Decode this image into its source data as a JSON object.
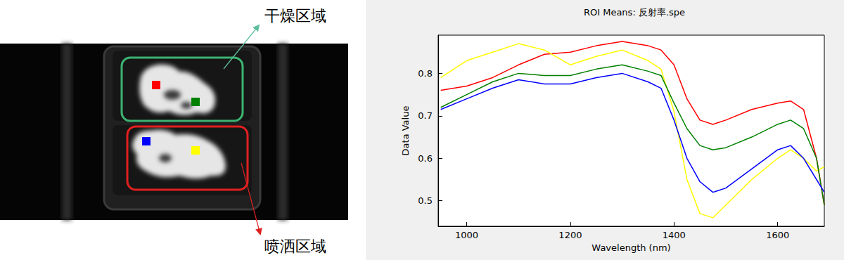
{
  "annotations": {
    "dry_region": "干燥区域",
    "spray_region": "喷洒区域"
  },
  "chart_data": {
    "type": "line",
    "title": "ROI Means: 反射率.spe",
    "x_label": "Wavelength (nm)",
    "y_label": "Data Value",
    "x": [
      950,
      1000,
      1050,
      1100,
      1150,
      1200,
      1250,
      1300,
      1350,
      1375,
      1400,
      1425,
      1450,
      1475,
      1500,
      1550,
      1600,
      1625,
      1650,
      1675,
      1690
    ],
    "series": [
      {
        "color": "#ff0000",
        "values": [
          0.76,
          0.77,
          0.79,
          0.82,
          0.845,
          0.85,
          0.865,
          0.875,
          0.865,
          0.855,
          0.82,
          0.74,
          0.69,
          0.68,
          0.69,
          0.715,
          0.73,
          0.735,
          0.715,
          0.6,
          0.49
        ]
      },
      {
        "color": "#ffff00",
        "values": [
          0.79,
          0.83,
          0.85,
          0.87,
          0.855,
          0.82,
          0.84,
          0.855,
          0.83,
          0.81,
          0.71,
          0.55,
          0.47,
          0.46,
          0.49,
          0.55,
          0.6,
          0.62,
          0.6,
          0.57,
          0.58
        ]
      },
      {
        "color": "#008000",
        "values": [
          0.72,
          0.75,
          0.78,
          0.8,
          0.795,
          0.795,
          0.81,
          0.82,
          0.805,
          0.795,
          0.73,
          0.67,
          0.63,
          0.62,
          0.625,
          0.65,
          0.68,
          0.69,
          0.67,
          0.6,
          0.49
        ]
      },
      {
        "color": "#0000ff",
        "values": [
          0.715,
          0.74,
          0.765,
          0.785,
          0.775,
          0.775,
          0.79,
          0.8,
          0.78,
          0.765,
          0.69,
          0.6,
          0.545,
          0.52,
          0.53,
          0.575,
          0.62,
          0.63,
          0.6,
          0.55,
          0.52
        ]
      }
    ],
    "xlim": [
      945,
      1690
    ],
    "xticks": [
      1000,
      1200,
      1400,
      1600
    ],
    "ylim": [
      0.44,
      0.89
    ],
    "yticks": [
      0.5,
      0.6,
      0.7,
      0.8
    ],
    "grid": false
  }
}
